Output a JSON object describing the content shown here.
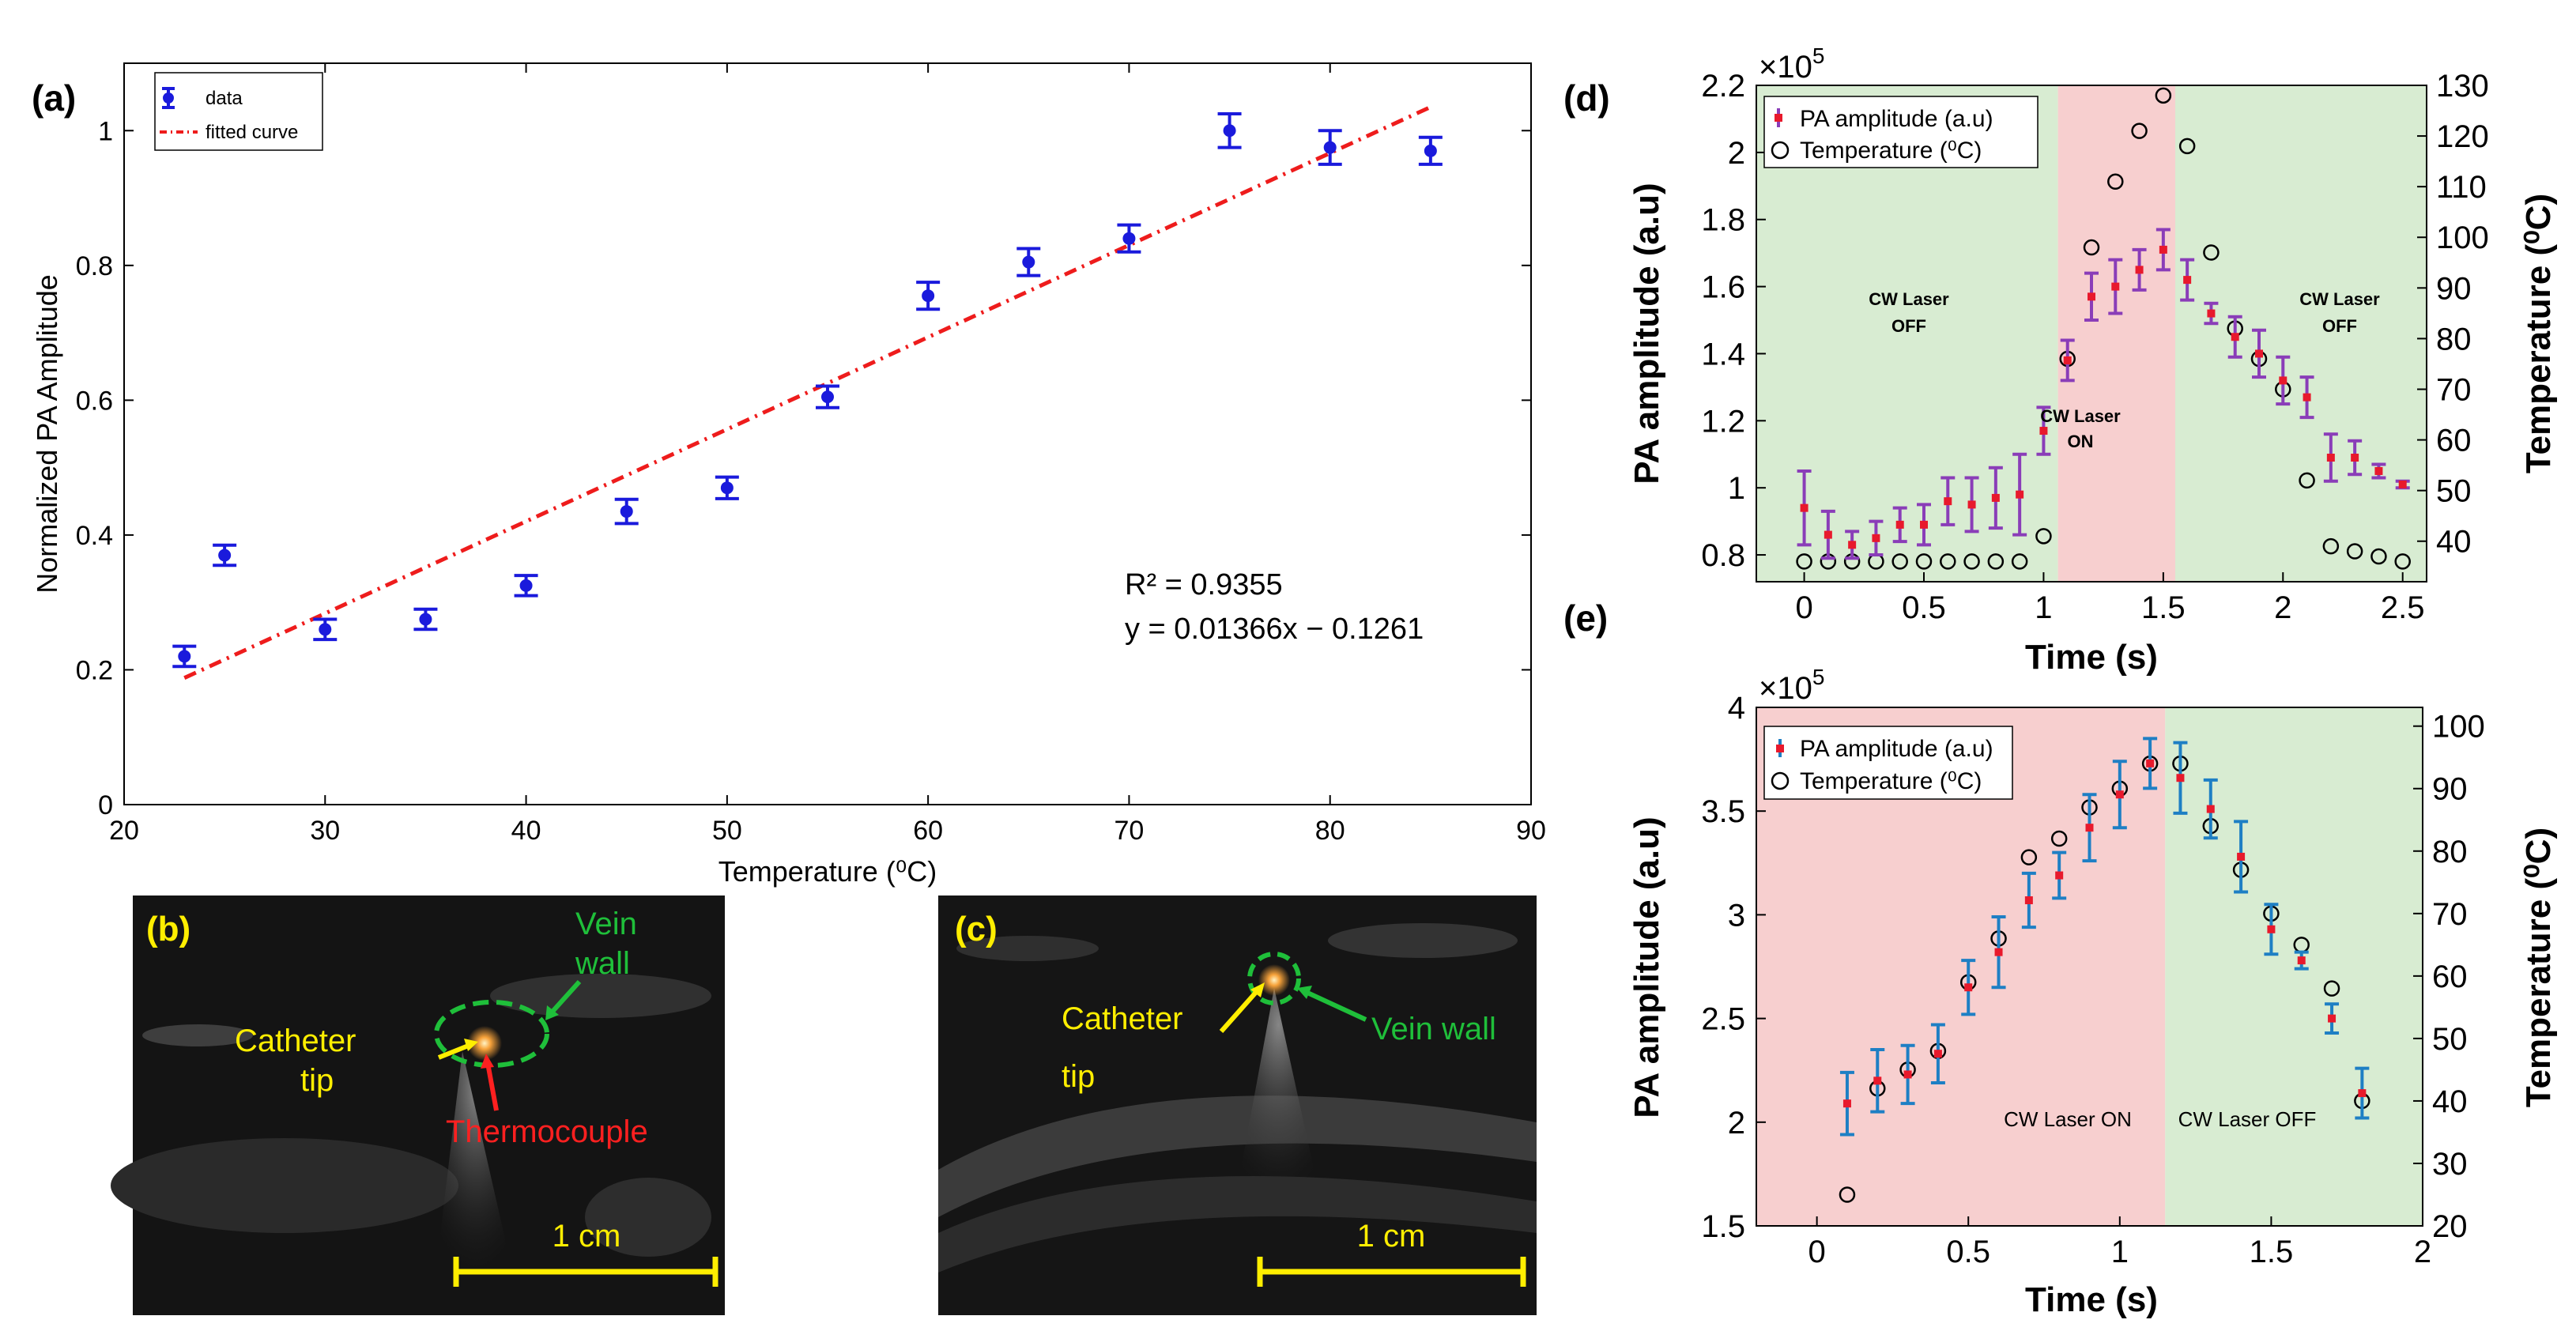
{
  "panels": {
    "a": "(a)",
    "b": "(b)",
    "c": "(c)",
    "d": "(d)",
    "e": "(e)"
  },
  "colors": {
    "blue": "#1a1adc",
    "fit": "#ee1c1c",
    "purple": "#8a3db8",
    "red_dot": "#e8192c",
    "cyan_err": "#1e7fc4",
    "shade_green": "#d8ecd2",
    "shade_red": "#f7cfcf",
    "yellow": "#ffee00",
    "green_text": "#1fbf3a",
    "red_text": "#ff2020"
  },
  "chart_a": {
    "legend": {
      "data": "data",
      "fit": "fitted curve"
    },
    "xlabel": "Temperature (⁰C)",
    "ylabel": "Normalized PA Amplitude",
    "r2_text": "R² = 0.9355",
    "eq_text": "y = 0.01366x − 0.1261"
  },
  "chart_d": {
    "exponent": "×10",
    "exponent_power": "5",
    "xlabel": "Time (s)",
    "ylabel_left": "PA amplitude (a.u)",
    "ylabel_right": "Temperature (⁰C)",
    "legend": {
      "pa": "PA amplitude (a.u)",
      "temp": "Temperature  (⁰C)"
    },
    "labels": {
      "off1_line1": "CW Laser",
      "off1_line2": "OFF",
      "on_line1": "CW Laser",
      "on_line2": "ON",
      "off2_line1": "CW Laser",
      "off2_line2": "OFF"
    }
  },
  "chart_e": {
    "exponent": "×10",
    "exponent_power": "5",
    "xlabel": "Time (s)",
    "ylabel_left": "PA amplitude (a.u)",
    "ylabel_right": "Temperature (⁰C)",
    "legend": {
      "pa": "PA amplitude (a.u)",
      "temp": "Temperature (⁰C)"
    },
    "labels": {
      "on": "CW Laser ON",
      "off": "CW Laser OFF"
    }
  },
  "image_b": {
    "vein_line1": "Vein",
    "vein_line2": "wall",
    "catheter_line1": "Catheter",
    "catheter_line2": "tip",
    "thermocouple": "Thermocouple",
    "scalebar": "1 cm"
  },
  "image_c": {
    "catheter_line1": "Catheter",
    "catheter_line2": "tip",
    "vein": "Vein wall",
    "scalebar": "1 cm"
  },
  "chart_data": [
    {
      "type": "scatter",
      "xlabel": "Temperature (⁰C)",
      "ylabel": "Normalized PA Amplitude",
      "xlim": [
        20,
        90
      ],
      "ylim": [
        0,
        1.1
      ],
      "xticks": [
        20,
        30,
        40,
        50,
        60,
        70,
        80,
        90
      ],
      "yticks": [
        0,
        0.2,
        0.4,
        0.6,
        0.8,
        1
      ],
      "series": [
        {
          "name": "data",
          "x": [
            23,
            25,
            30,
            35,
            40,
            45,
            50,
            55,
            60,
            65,
            70,
            75,
            80,
            85
          ],
          "y": [
            0.22,
            0.37,
            0.26,
            0.275,
            0.325,
            0.435,
            0.47,
            0.605,
            0.755,
            0.805,
            0.84,
            1.0,
            0.975,
            0.97
          ],
          "err": [
            0.015,
            0.015,
            0.015,
            0.015,
            0.015,
            0.018,
            0.016,
            0.016,
            0.02,
            0.02,
            0.02,
            0.025,
            0.025,
            0.02
          ]
        },
        {
          "name": "fitted curve",
          "x": [
            23,
            85
          ],
          "y": [
            0.188,
            1.035
          ]
        }
      ],
      "annotations": [
        "R² = 0.9355",
        "y = 0.01366x − 0.1261"
      ],
      "legend": "top-left"
    },
    {
      "type": "scatter",
      "xlabel": "Time (s)",
      "ylabel": "PA amplitude (a.u)",
      "y2label": "Temperature (⁰C)",
      "xlim": [
        -0.2,
        2.6
      ],
      "ylim": [
        0.72,
        2.2
      ],
      "y2lim": [
        32,
        130
      ],
      "xticks": [
        0,
        0.5,
        1,
        1.5,
        2,
        2.5
      ],
      "yticks": [
        0.8,
        1,
        1.2,
        1.4,
        1.6,
        1.8,
        2,
        2.2
      ],
      "y2ticks": [
        40,
        50,
        60,
        70,
        80,
        90,
        100,
        110,
        120,
        130
      ],
      "y_scale_exponent": 5,
      "regions": [
        {
          "from": -0.2,
          "to": 1.06,
          "state": "off"
        },
        {
          "from": 1.06,
          "to": 1.55,
          "state": "on"
        },
        {
          "from": 1.55,
          "to": 2.6,
          "state": "off"
        }
      ],
      "series": [
        {
          "name": "PA amplitude (a.u)",
          "x": [
            0,
            0.1,
            0.2,
            0.3,
            0.4,
            0.5,
            0.6,
            0.7,
            0.8,
            0.9,
            1.0,
            1.1,
            1.2,
            1.3,
            1.4,
            1.5,
            1.6,
            1.7,
            1.8,
            1.9,
            2.0,
            2.1,
            2.2,
            2.3,
            2.4,
            2.5
          ],
          "y": [
            0.94,
            0.86,
            0.83,
            0.85,
            0.89,
            0.89,
            0.96,
            0.95,
            0.97,
            0.98,
            1.17,
            1.38,
            1.57,
            1.6,
            1.65,
            1.71,
            1.62,
            1.52,
            1.45,
            1.4,
            1.32,
            1.27,
            1.09,
            1.09,
            1.05,
            1.01
          ],
          "err": [
            0.11,
            0.07,
            0.04,
            0.05,
            0.05,
            0.06,
            0.07,
            0.08,
            0.09,
            0.12,
            0.07,
            0.06,
            0.07,
            0.08,
            0.06,
            0.06,
            0.06,
            0.03,
            0.06,
            0.07,
            0.07,
            0.06,
            0.07,
            0.05,
            0.02,
            0.01
          ]
        },
        {
          "name": "Temperature  (⁰C)",
          "axis": "right",
          "x": [
            0,
            0.1,
            0.2,
            0.3,
            0.4,
            0.5,
            0.6,
            0.7,
            0.8,
            0.9,
            1.0,
            1.1,
            1.2,
            1.3,
            1.4,
            1.5,
            1.6,
            1.7,
            1.8,
            1.9,
            2.0,
            2.1,
            2.2,
            2.3,
            2.4,
            2.5
          ],
          "y": [
            36,
            36,
            36,
            36,
            36,
            36,
            36,
            36,
            36,
            36,
            41,
            76,
            98,
            111,
            121,
            128,
            118,
            97,
            82,
            76,
            70,
            52,
            39,
            38,
            37,
            36
          ]
        }
      ],
      "legend": "top-left"
    },
    {
      "type": "scatter",
      "xlabel": "Time (s)",
      "ylabel": "PA amplitude (a.u)",
      "y2label": "Temperature (⁰C)",
      "xlim": [
        -0.2,
        2.0
      ],
      "ylim": [
        1.5,
        4.0
      ],
      "y2lim": [
        20,
        103
      ],
      "xticks": [
        0,
        0.5,
        1,
        1.5,
        2
      ],
      "yticks": [
        1.5,
        2,
        2.5,
        3,
        3.5,
        4
      ],
      "y2ticks": [
        20,
        30,
        40,
        50,
        60,
        70,
        80,
        90,
        100
      ],
      "y_scale_exponent": 5,
      "regions": [
        {
          "from": -0.2,
          "to": 1.15,
          "state": "on"
        },
        {
          "from": 1.15,
          "to": 2.0,
          "state": "off"
        }
      ],
      "series": [
        {
          "name": "PA amplitude (a.u)",
          "x": [
            0.1,
            0.2,
            0.3,
            0.4,
            0.5,
            0.6,
            0.7,
            0.8,
            0.9,
            1.0,
            1.1,
            1.2,
            1.3,
            1.4,
            1.5,
            1.6,
            1.7,
            1.8
          ],
          "y": [
            2.09,
            2.2,
            2.23,
            2.33,
            2.65,
            2.82,
            3.07,
            3.19,
            3.42,
            3.58,
            3.73,
            3.66,
            3.51,
            3.28,
            2.93,
            2.78,
            2.5,
            2.14
          ],
          "err": [
            0.15,
            0.15,
            0.14,
            0.14,
            0.13,
            0.17,
            0.13,
            0.11,
            0.16,
            0.16,
            0.12,
            0.17,
            0.14,
            0.17,
            0.12,
            0.04,
            0.07,
            0.12
          ]
        },
        {
          "name": "Temperature (⁰C)",
          "axis": "right",
          "x": [
            0.1,
            0.2,
            0.3,
            0.4,
            0.5,
            0.6,
            0.7,
            0.8,
            0.9,
            1.0,
            1.1,
            1.2,
            1.3,
            1.4,
            1.5,
            1.6,
            1.7,
            1.8
          ],
          "y": [
            25,
            42,
            45,
            48,
            59,
            66,
            79,
            82,
            87,
            90,
            94,
            94,
            84,
            77,
            70,
            65,
            58,
            40
          ]
        }
      ],
      "legend": "top-left"
    }
  ]
}
